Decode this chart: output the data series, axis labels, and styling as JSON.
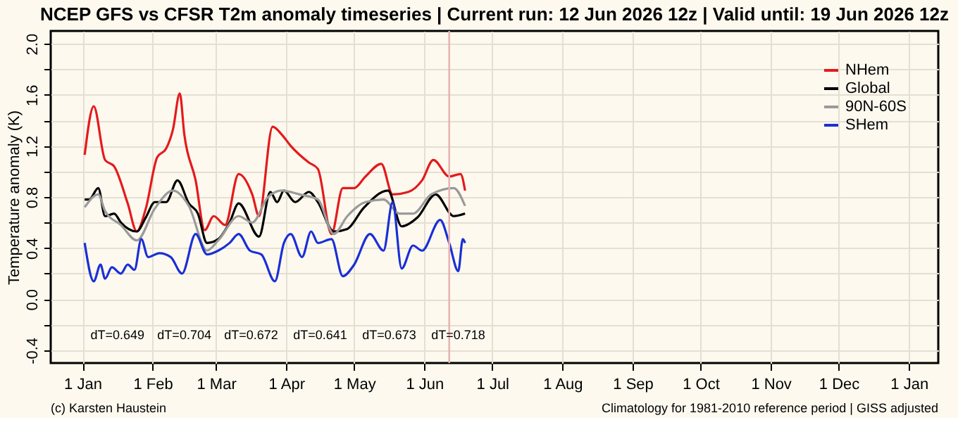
{
  "chart_data": {
    "type": "line",
    "title": "NCEP GFS vs CFSR T2m anomaly timeseries | Current run: 12 Jun 2026 12z | Valid until: 19 Jun 2026 12z",
    "ylabel": "Temperature anomaly (K)",
    "xlim": [
      "2025-12-18",
      "2027-01-14"
    ],
    "xticks": [
      {
        "value": "2026-01-01",
        "label": "1 Jan"
      },
      {
        "value": "2026-02-01",
        "label": "1 Feb"
      },
      {
        "value": "2026-03-01",
        "label": "1 Mar"
      },
      {
        "value": "2026-04-01",
        "label": "1 Apr"
      },
      {
        "value": "2026-05-01",
        "label": "1 May"
      },
      {
        "value": "2026-06-01",
        "label": "1 Jun"
      },
      {
        "value": "2026-07-01",
        "label": "1 Jul"
      },
      {
        "value": "2026-08-01",
        "label": "1 Aug"
      },
      {
        "value": "2026-09-01",
        "label": "1 Sep"
      },
      {
        "value": "2026-10-01",
        "label": "1 Oct"
      },
      {
        "value": "2026-11-01",
        "label": "1 Nov"
      },
      {
        "value": "2026-12-01",
        "label": "1 Dec"
      },
      {
        "value": "2027-01-01",
        "label": "1 Jan"
      }
    ],
    "ylim": [
      -0.5,
      2.1
    ],
    "yticks": [
      {
        "value": -0.4,
        "label": "-0.4"
      },
      {
        "value": -0.2,
        "label": null
      },
      {
        "value": 0,
        "label": "0.0"
      },
      {
        "value": 0.2,
        "label": null
      },
      {
        "value": 0.4,
        "label": "0.4"
      },
      {
        "value": 0.6,
        "label": null
      },
      {
        "value": 0.8,
        "label": "0.8"
      },
      {
        "value": 1.0,
        "label": null
      },
      {
        "value": 1.2,
        "label": "1.2"
      },
      {
        "value": 1.4,
        "label": null
      },
      {
        "value": 1.6,
        "label": "1.6"
      },
      {
        "value": 1.8,
        "label": null
      },
      {
        "value": 2.0,
        "label": "2.0"
      }
    ],
    "grid": true,
    "legend": "top right",
    "marker": "none",
    "line_style": "solid",
    "ref_lines": [
      {
        "axis": "x",
        "value": "2026-06-12",
        "color": "#e8b4b4"
      }
    ],
    "annotations": [
      "dT=0.649",
      "dT=0.704",
      "dT=0.672",
      "dT=0.641",
      "dT=0.673",
      "dT=0.718",
      "(c) Karsten Haustein",
      "Climatology for 1981-2010 reference period | GISS adjusted"
    ],
    "series": [
      {
        "name": "NHem",
        "color": "#e41a1c",
        "x": [
          "2026-01-02",
          "2026-01-06",
          "2026-01-11",
          "2026-01-15",
          "2026-01-21",
          "2026-01-25",
          "2026-01-29",
          "2026-02-03",
          "2026-02-07",
          "2026-02-10",
          "2026-02-13",
          "2026-02-15",
          "2026-02-20",
          "2026-02-24",
          "2026-02-28",
          "2026-03-05",
          "2026-03-11",
          "2026-03-17",
          "2026-03-20",
          "2026-03-26",
          "2026-03-30",
          "2026-04-03",
          "2026-04-11",
          "2026-04-15",
          "2026-04-21",
          "2026-04-26",
          "2026-05-01",
          "2026-05-06",
          "2026-05-13",
          "2026-05-18",
          "2026-05-25",
          "2026-05-31",
          "2026-06-05",
          "2026-06-12",
          "2026-06-17",
          "2026-06-19"
        ],
        "values": [
          1.13,
          1.51,
          1.09,
          1.04,
          0.75,
          0.53,
          0.71,
          1.11,
          1.18,
          1.33,
          1.61,
          1.29,
          0.93,
          0.54,
          0.65,
          0.58,
          0.98,
          0.82,
          0.65,
          1.35,
          1.29,
          1.2,
          1.07,
          1.02,
          0.51,
          0.87,
          0.87,
          0.96,
          1.06,
          0.82,
          0.84,
          0.93,
          1.09,
          0.96,
          0.98,
          0.85
        ]
      },
      {
        "name": "Global",
        "color": "#000000",
        "x": [
          "2026-01-02",
          "2026-01-04",
          "2026-01-08",
          "2026-01-11",
          "2026-01-15",
          "2026-01-18",
          "2026-01-25",
          "2026-01-29",
          "2026-02-02",
          "2026-02-07",
          "2026-02-12",
          "2026-02-17",
          "2026-02-21",
          "2026-02-25",
          "2026-03-02",
          "2026-03-07",
          "2026-03-11",
          "2026-03-20",
          "2026-03-25",
          "2026-03-28",
          "2026-03-31",
          "2026-04-05",
          "2026-04-11",
          "2026-04-15",
          "2026-04-22",
          "2026-04-28",
          "2026-05-05",
          "2026-05-16",
          "2026-05-22",
          "2026-05-29",
          "2026-06-06",
          "2026-06-14",
          "2026-06-19"
        ],
        "values": [
          0.78,
          0.78,
          0.87,
          0.65,
          0.67,
          0.6,
          0.53,
          0.64,
          0.76,
          0.76,
          0.93,
          0.75,
          0.67,
          0.44,
          0.47,
          0.6,
          0.75,
          0.49,
          0.84,
          0.76,
          0.85,
          0.76,
          0.84,
          0.76,
          0.53,
          0.55,
          0.71,
          0.85,
          0.57,
          0.64,
          0.82,
          0.65,
          0.67
        ]
      },
      {
        "name": "90N-60S",
        "color": "#9a9a9a",
        "x": [
          "2026-01-02",
          "2026-01-08",
          "2026-01-11",
          "2026-01-18",
          "2026-01-25",
          "2026-02-02",
          "2026-02-10",
          "2026-02-17",
          "2026-02-25",
          "2026-03-02",
          "2026-03-11",
          "2026-03-17",
          "2026-03-24",
          "2026-03-30",
          "2026-04-07",
          "2026-04-15",
          "2026-04-22",
          "2026-04-28",
          "2026-05-06",
          "2026-05-14",
          "2026-05-21",
          "2026-05-27",
          "2026-06-04",
          "2026-06-14",
          "2026-06-19"
        ],
        "values": [
          0.72,
          0.82,
          0.69,
          0.58,
          0.46,
          0.71,
          0.85,
          0.73,
          0.38,
          0.46,
          0.65,
          0.6,
          0.8,
          0.85,
          0.82,
          0.78,
          0.51,
          0.65,
          0.76,
          0.78,
          0.67,
          0.67,
          0.82,
          0.87,
          0.73
        ]
      },
      {
        "name": "SHem",
        "color": "#1a2fd6",
        "x": [
          "2026-01-02",
          "2026-01-06",
          "2026-01-09",
          "2026-01-11",
          "2026-01-14",
          "2026-01-18",
          "2026-01-21",
          "2026-01-24",
          "2026-01-27",
          "2026-01-30",
          "2026-02-04",
          "2026-02-09",
          "2026-02-14",
          "2026-02-20",
          "2026-02-25",
          "2026-03-02",
          "2026-03-07",
          "2026-03-11",
          "2026-03-16",
          "2026-03-21",
          "2026-03-27",
          "2026-03-31",
          "2026-04-03",
          "2026-04-08",
          "2026-04-12",
          "2026-04-15",
          "2026-04-21",
          "2026-04-26",
          "2026-05-01",
          "2026-05-08",
          "2026-05-14",
          "2026-05-18",
          "2026-05-22",
          "2026-05-27",
          "2026-05-31",
          "2026-06-08",
          "2026-06-12",
          "2026-06-16",
          "2026-06-18",
          "2026-06-19"
        ],
        "values": [
          0.44,
          0.14,
          0.27,
          0.16,
          0.25,
          0.2,
          0.27,
          0.23,
          0.47,
          0.33,
          0.36,
          0.33,
          0.2,
          0.51,
          0.35,
          0.38,
          0.44,
          0.51,
          0.38,
          0.35,
          0.14,
          0.44,
          0.51,
          0.33,
          0.53,
          0.44,
          0.47,
          0.18,
          0.27,
          0.51,
          0.38,
          0.76,
          0.24,
          0.42,
          0.38,
          0.62,
          0.44,
          0.22,
          0.47,
          0.44
        ]
      }
    ]
  }
}
